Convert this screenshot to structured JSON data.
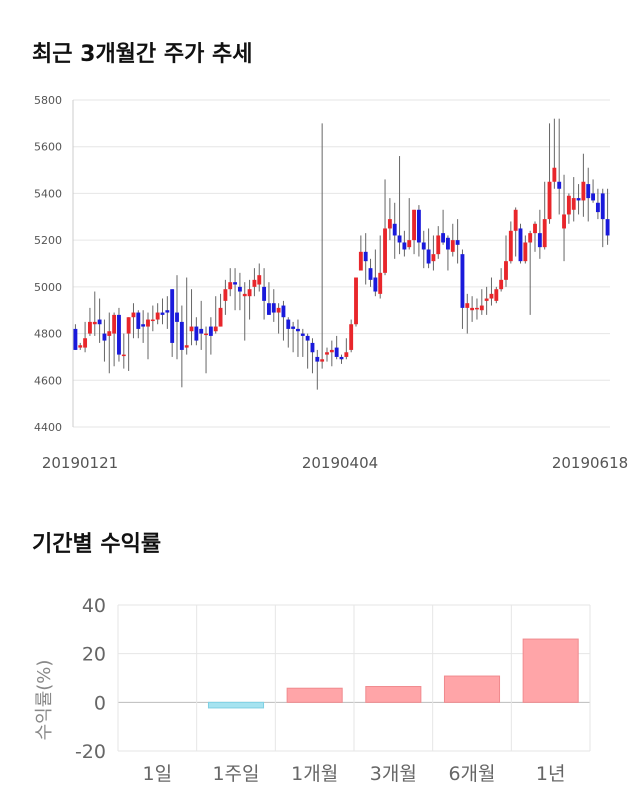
{
  "titles": {
    "price_trend": "최근 3개월간 주가 추세",
    "period_returns": "기간별 수익률"
  },
  "colors": {
    "up": "#e8262b",
    "down": "#1a1adb",
    "positive_bar": "#ffa5a8",
    "negative_bar": "#a6e3f0"
  },
  "chart_data": [
    {
      "type": "candlestick",
      "title": "최근 3개월간 주가 추세",
      "ylim": [
        4400,
        5800
      ],
      "y_ticks": [
        "4400",
        "4600",
        "4800",
        "5000",
        "5200",
        "5400",
        "5600",
        "5800"
      ],
      "x_ticks": [
        "20190121",
        "20190404",
        "20190618"
      ],
      "grid": true,
      "candles": [
        [
          4820,
          4730,
          4840,
          4730
        ],
        [
          4740,
          4750,
          4760,
          4730
        ],
        [
          4740,
          4780,
          4850,
          4720
        ],
        [
          4800,
          4850,
          4910,
          4790
        ],
        [
          4840,
          4850,
          4980,
          4790
        ],
        [
          4860,
          4840,
          4950,
          4760
        ],
        [
          4800,
          4770,
          4860,
          4680
        ],
        [
          4790,
          4810,
          4890,
          4630
        ],
        [
          4800,
          4880,
          4890,
          4660
        ],
        [
          4880,
          4710,
          4910,
          4680
        ],
        [
          4710,
          4710,
          4800,
          4650
        ],
        [
          4800,
          4870,
          4870,
          4640
        ],
        [
          4870,
          4890,
          4930,
          4780
        ],
        [
          4890,
          4820,
          4900,
          4780
        ],
        [
          4840,
          4830,
          4900,
          4760
        ],
        [
          4830,
          4860,
          4890,
          4690
        ],
        [
          4860,
          4860,
          4920,
          4810
        ],
        [
          4860,
          4890,
          4930,
          4840
        ],
        [
          4890,
          4880,
          4950,
          4840
        ],
        [
          4900,
          4890,
          4960,
          4820
        ],
        [
          4990,
          4760,
          4990,
          4700
        ],
        [
          4890,
          4850,
          5050,
          4690
        ],
        [
          4850,
          4730,
          4920,
          4570
        ],
        [
          4740,
          4750,
          5040,
          4710
        ],
        [
          4810,
          4830,
          4990,
          4750
        ],
        [
          4830,
          4770,
          4870,
          4750
        ],
        [
          4820,
          4800,
          4940,
          4730
        ],
        [
          4800,
          4800,
          4830,
          4630
        ],
        [
          4830,
          4790,
          4870,
          4710
        ],
        [
          4810,
          4830,
          4960,
          4800
        ],
        [
          4830,
          4910,
          4970,
          4830
        ],
        [
          4940,
          4990,
          5030,
          4880
        ],
        [
          4990,
          5020,
          5080,
          4960
        ],
        [
          5020,
          5010,
          5080,
          4900
        ],
        [
          5000,
          4980,
          5060,
          4900
        ],
        [
          4960,
          4970,
          5020,
          4770
        ],
        [
          4960,
          4990,
          5030,
          4860
        ],
        [
          5000,
          5030,
          5080,
          4960
        ],
        [
          5010,
          5050,
          5100,
          4980
        ],
        [
          5000,
          4940,
          5080,
          4860
        ],
        [
          4930,
          4880,
          5020,
          4880
        ],
        [
          4930,
          4890,
          4990,
          4850
        ],
        [
          4890,
          4910,
          4930,
          4800
        ],
        [
          4920,
          4870,
          4940,
          4770
        ],
        [
          4860,
          4820,
          4870,
          4740
        ],
        [
          4830,
          4820,
          4850,
          4720
        ],
        [
          4820,
          4810,
          4860,
          4700
        ],
        [
          4800,
          4790,
          4820,
          4700
        ],
        [
          4790,
          4770,
          4800,
          4650
        ],
        [
          4760,
          4720,
          4780,
          4630
        ],
        [
          4700,
          4680,
          4730,
          4560
        ],
        [
          4680,
          4690,
          5700,
          4650
        ],
        [
          4710,
          4720,
          4740,
          4680
        ],
        [
          4720,
          4730,
          4770,
          4660
        ],
        [
          4740,
          4700,
          4790,
          4690
        ],
        [
          4700,
          4690,
          4710,
          4670
        ],
        [
          4700,
          4720,
          4780,
          4690
        ],
        [
          4730,
          4840,
          4860,
          4720
        ],
        [
          4840,
          5040,
          5040,
          4830
        ],
        [
          5070,
          5150,
          5220,
          5070
        ],
        [
          5150,
          5110,
          5230,
          5010
        ],
        [
          5080,
          5030,
          5120,
          5000
        ],
        [
          5040,
          4980,
          5160,
          4960
        ],
        [
          4970,
          5060,
          5220,
          4950
        ],
        [
          5060,
          5250,
          5460,
          5050
        ],
        [
          5250,
          5290,
          5380,
          5200
        ],
        [
          5270,
          5220,
          5360,
          5120
        ],
        [
          5220,
          5190,
          5560,
          5140
        ],
        [
          5190,
          5160,
          5240,
          5130
        ],
        [
          5170,
          5200,
          5380,
          5160
        ],
        [
          5200,
          5330,
          5330,
          5140
        ],
        [
          5330,
          5190,
          5350,
          5130
        ],
        [
          5190,
          5160,
          5240,
          5080
        ],
        [
          5160,
          5100,
          5250,
          5080
        ],
        [
          5110,
          5140,
          5220,
          5070
        ],
        [
          5140,
          5220,
          5260,
          5120
        ],
        [
          5230,
          5190,
          5330,
          5180
        ],
        [
          5210,
          5160,
          5220,
          5070
        ],
        [
          5150,
          5200,
          5270,
          5130
        ],
        [
          5200,
          5180,
          5290,
          5100
        ],
        [
          5140,
          4910,
          5160,
          4820
        ],
        [
          4910,
          4930,
          4970,
          4800
        ],
        [
          4900,
          4910,
          4960,
          4850
        ],
        [
          4910,
          4910,
          4950,
          4860
        ],
        [
          4900,
          4920,
          4990,
          4880
        ],
        [
          4940,
          4950,
          5000,
          4880
        ],
        [
          4950,
          4970,
          5040,
          4920
        ],
        [
          4940,
          4990,
          5000,
          4930
        ],
        [
          4990,
          5030,
          5080,
          4980
        ],
        [
          5030,
          5110,
          5220,
          5000
        ],
        [
          5110,
          5240,
          5280,
          5100
        ],
        [
          5240,
          5330,
          5340,
          5130
        ],
        [
          5250,
          5110,
          5270,
          5100
        ],
        [
          5110,
          5190,
          5220,
          5100
        ],
        [
          5190,
          5230,
          5240,
          4880
        ],
        [
          5230,
          5270,
          5280,
          5150
        ],
        [
          5230,
          5170,
          5330,
          5120
        ],
        [
          5170,
          5290,
          5450,
          5160
        ],
        [
          5290,
          5450,
          5700,
          5270
        ],
        [
          5450,
          5510,
          5720,
          5420
        ],
        [
          5450,
          5420,
          5720,
          5310
        ],
        [
          5250,
          5310,
          5480,
          5110
        ],
        [
          5310,
          5390,
          5400,
          5270
        ],
        [
          5330,
          5380,
          5470,
          5280
        ],
        [
          5380,
          5370,
          5440,
          5310
        ],
        [
          5370,
          5450,
          5570,
          5300
        ],
        [
          5440,
          5380,
          5510,
          5280
        ],
        [
          5400,
          5370,
          5460,
          5360
        ],
        [
          5360,
          5320,
          5420,
          5290
        ],
        [
          5400,
          5290,
          5420,
          5170
        ],
        [
          5290,
          5220,
          5420,
          5180
        ]
      ]
    },
    {
      "type": "bar",
      "title": "기간별 수익률",
      "categories": [
        "1일",
        "1주일",
        "1개월",
        "3개월",
        "6개월",
        "1년"
      ],
      "values": [
        0,
        -2.3,
        5.8,
        6.5,
        10.8,
        26
      ],
      "ylabel": "수익률(%)",
      "ylim": [
        -20,
        40
      ],
      "y_ticks": [
        "-20",
        "0",
        "20",
        "40"
      ],
      "grid": true
    }
  ]
}
